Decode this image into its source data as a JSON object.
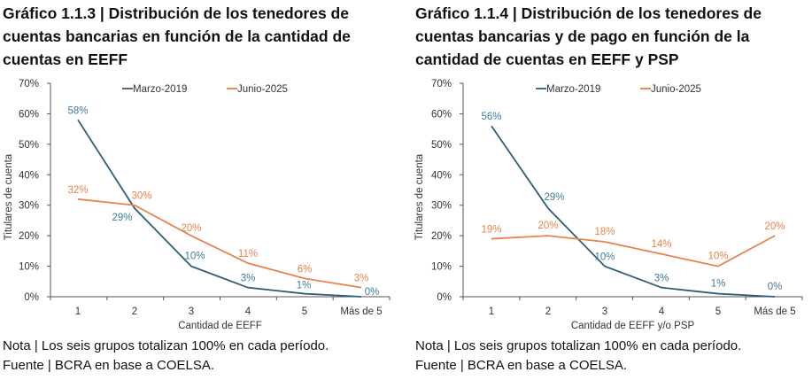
{
  "charts": [
    {
      "title": "Gráfico 1.1.3 | Distribución de los tenedores de cuentas bancarias en función de la cantidad de cuentas en EEFF",
      "note": "Nota | Los seis grupos totalizan 100% en cada período.",
      "source": "Fuente | BCRA en base a COELSA."
    },
    {
      "title": "Gráfico 1.1.4 | Distribución de los tenedores de cuentas bancarias y de pago en función de la cantidad de cuentas en EEFF y PSP",
      "note": "Nota | Los seis grupos totalizan 100% en cada período.",
      "source": "Fuente | BCRA en base a COELSA."
    }
  ],
  "colors": {
    "Marzo-2019": "#2f5e78",
    "Junio-2025": "#e8834a",
    "Marzo-2019-label": "#3f7b9b",
    "axis": "#555555"
  },
  "chart_data": [
    {
      "type": "line",
      "categories": [
        "1",
        "2",
        "3",
        "4",
        "5",
        "Más de 5"
      ],
      "series": [
        {
          "name": "Marzo-2019",
          "values": [
            58,
            29,
            10,
            3,
            1,
            0
          ]
        },
        {
          "name": "Junio-2025",
          "values": [
            32,
            30,
            20,
            11,
            6,
            3
          ]
        }
      ],
      "xlabel": "Cantidad de EEFF",
      "ylabel": "Titulares de cuenta",
      "ylim": [
        0,
        70
      ],
      "yticks": [
        "0%",
        "10%",
        "20%",
        "30%",
        "40%",
        "50%",
        "60%",
        "70%"
      ],
      "grid": false,
      "legend": "top"
    },
    {
      "type": "line",
      "categories": [
        "1",
        "2",
        "3",
        "4",
        "5",
        "Más de 5"
      ],
      "series": [
        {
          "name": "Marzo-2019",
          "values": [
            56,
            29,
            10,
            3,
            1,
            0
          ]
        },
        {
          "name": "Junio-2025",
          "values": [
            19,
            20,
            18,
            14,
            10,
            20
          ]
        }
      ],
      "xlabel": "Cantidad de EEFF y/o PSP",
      "ylabel": "Titulares de cuenta",
      "ylim": [
        0,
        70
      ],
      "yticks": [
        "0%",
        "10%",
        "20%",
        "30%",
        "40%",
        "50%",
        "60%",
        "70%"
      ],
      "grid": false,
      "legend": "top"
    }
  ]
}
